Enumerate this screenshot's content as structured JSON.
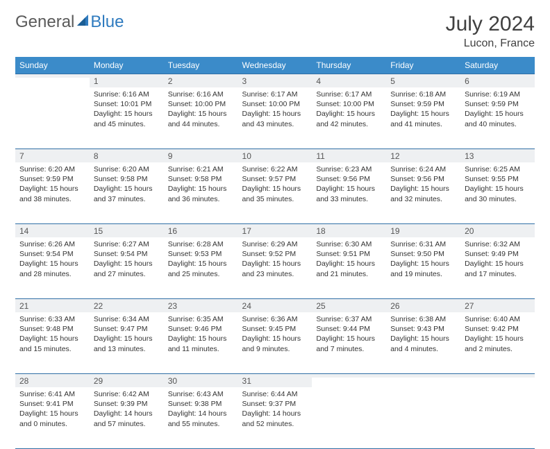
{
  "brand": {
    "part1": "General",
    "part2": "Blue"
  },
  "title": "July 2024",
  "location": "Lucon, France",
  "colors": {
    "header_bg": "#3b8bc9",
    "header_fg": "#ffffff",
    "daynum_bg": "#eef0f2",
    "border": "#2f6ea5",
    "text": "#333333",
    "title": "#404040"
  },
  "days_of_week": [
    "Sunday",
    "Monday",
    "Tuesday",
    "Wednesday",
    "Thursday",
    "Friday",
    "Saturday"
  ],
  "weeks": [
    [
      {
        "n": "",
        "lines": []
      },
      {
        "n": "1",
        "lines": [
          "Sunrise: 6:16 AM",
          "Sunset: 10:01 PM",
          "Daylight: 15 hours",
          "and 45 minutes."
        ]
      },
      {
        "n": "2",
        "lines": [
          "Sunrise: 6:16 AM",
          "Sunset: 10:00 PM",
          "Daylight: 15 hours",
          "and 44 minutes."
        ]
      },
      {
        "n": "3",
        "lines": [
          "Sunrise: 6:17 AM",
          "Sunset: 10:00 PM",
          "Daylight: 15 hours",
          "and 43 minutes."
        ]
      },
      {
        "n": "4",
        "lines": [
          "Sunrise: 6:17 AM",
          "Sunset: 10:00 PM",
          "Daylight: 15 hours",
          "and 42 minutes."
        ]
      },
      {
        "n": "5",
        "lines": [
          "Sunrise: 6:18 AM",
          "Sunset: 9:59 PM",
          "Daylight: 15 hours",
          "and 41 minutes."
        ]
      },
      {
        "n": "6",
        "lines": [
          "Sunrise: 6:19 AM",
          "Sunset: 9:59 PM",
          "Daylight: 15 hours",
          "and 40 minutes."
        ]
      }
    ],
    [
      {
        "n": "7",
        "lines": [
          "Sunrise: 6:20 AM",
          "Sunset: 9:59 PM",
          "Daylight: 15 hours",
          "and 38 minutes."
        ]
      },
      {
        "n": "8",
        "lines": [
          "Sunrise: 6:20 AM",
          "Sunset: 9:58 PM",
          "Daylight: 15 hours",
          "and 37 minutes."
        ]
      },
      {
        "n": "9",
        "lines": [
          "Sunrise: 6:21 AM",
          "Sunset: 9:58 PM",
          "Daylight: 15 hours",
          "and 36 minutes."
        ]
      },
      {
        "n": "10",
        "lines": [
          "Sunrise: 6:22 AM",
          "Sunset: 9:57 PM",
          "Daylight: 15 hours",
          "and 35 minutes."
        ]
      },
      {
        "n": "11",
        "lines": [
          "Sunrise: 6:23 AM",
          "Sunset: 9:56 PM",
          "Daylight: 15 hours",
          "and 33 minutes."
        ]
      },
      {
        "n": "12",
        "lines": [
          "Sunrise: 6:24 AM",
          "Sunset: 9:56 PM",
          "Daylight: 15 hours",
          "and 32 minutes."
        ]
      },
      {
        "n": "13",
        "lines": [
          "Sunrise: 6:25 AM",
          "Sunset: 9:55 PM",
          "Daylight: 15 hours",
          "and 30 minutes."
        ]
      }
    ],
    [
      {
        "n": "14",
        "lines": [
          "Sunrise: 6:26 AM",
          "Sunset: 9:54 PM",
          "Daylight: 15 hours",
          "and 28 minutes."
        ]
      },
      {
        "n": "15",
        "lines": [
          "Sunrise: 6:27 AM",
          "Sunset: 9:54 PM",
          "Daylight: 15 hours",
          "and 27 minutes."
        ]
      },
      {
        "n": "16",
        "lines": [
          "Sunrise: 6:28 AM",
          "Sunset: 9:53 PM",
          "Daylight: 15 hours",
          "and 25 minutes."
        ]
      },
      {
        "n": "17",
        "lines": [
          "Sunrise: 6:29 AM",
          "Sunset: 9:52 PM",
          "Daylight: 15 hours",
          "and 23 minutes."
        ]
      },
      {
        "n": "18",
        "lines": [
          "Sunrise: 6:30 AM",
          "Sunset: 9:51 PM",
          "Daylight: 15 hours",
          "and 21 minutes."
        ]
      },
      {
        "n": "19",
        "lines": [
          "Sunrise: 6:31 AM",
          "Sunset: 9:50 PM",
          "Daylight: 15 hours",
          "and 19 minutes."
        ]
      },
      {
        "n": "20",
        "lines": [
          "Sunrise: 6:32 AM",
          "Sunset: 9:49 PM",
          "Daylight: 15 hours",
          "and 17 minutes."
        ]
      }
    ],
    [
      {
        "n": "21",
        "lines": [
          "Sunrise: 6:33 AM",
          "Sunset: 9:48 PM",
          "Daylight: 15 hours",
          "and 15 minutes."
        ]
      },
      {
        "n": "22",
        "lines": [
          "Sunrise: 6:34 AM",
          "Sunset: 9:47 PM",
          "Daylight: 15 hours",
          "and 13 minutes."
        ]
      },
      {
        "n": "23",
        "lines": [
          "Sunrise: 6:35 AM",
          "Sunset: 9:46 PM",
          "Daylight: 15 hours",
          "and 11 minutes."
        ]
      },
      {
        "n": "24",
        "lines": [
          "Sunrise: 6:36 AM",
          "Sunset: 9:45 PM",
          "Daylight: 15 hours",
          "and 9 minutes."
        ]
      },
      {
        "n": "25",
        "lines": [
          "Sunrise: 6:37 AM",
          "Sunset: 9:44 PM",
          "Daylight: 15 hours",
          "and 7 minutes."
        ]
      },
      {
        "n": "26",
        "lines": [
          "Sunrise: 6:38 AM",
          "Sunset: 9:43 PM",
          "Daylight: 15 hours",
          "and 4 minutes."
        ]
      },
      {
        "n": "27",
        "lines": [
          "Sunrise: 6:40 AM",
          "Sunset: 9:42 PM",
          "Daylight: 15 hours",
          "and 2 minutes."
        ]
      }
    ],
    [
      {
        "n": "28",
        "lines": [
          "Sunrise: 6:41 AM",
          "Sunset: 9:41 PM",
          "Daylight: 15 hours",
          "and 0 minutes."
        ]
      },
      {
        "n": "29",
        "lines": [
          "Sunrise: 6:42 AM",
          "Sunset: 9:39 PM",
          "Daylight: 14 hours",
          "and 57 minutes."
        ]
      },
      {
        "n": "30",
        "lines": [
          "Sunrise: 6:43 AM",
          "Sunset: 9:38 PM",
          "Daylight: 14 hours",
          "and 55 minutes."
        ]
      },
      {
        "n": "31",
        "lines": [
          "Sunrise: 6:44 AM",
          "Sunset: 9:37 PM",
          "Daylight: 14 hours",
          "and 52 minutes."
        ]
      },
      {
        "n": "",
        "lines": []
      },
      {
        "n": "",
        "lines": []
      },
      {
        "n": "",
        "lines": []
      }
    ]
  ]
}
